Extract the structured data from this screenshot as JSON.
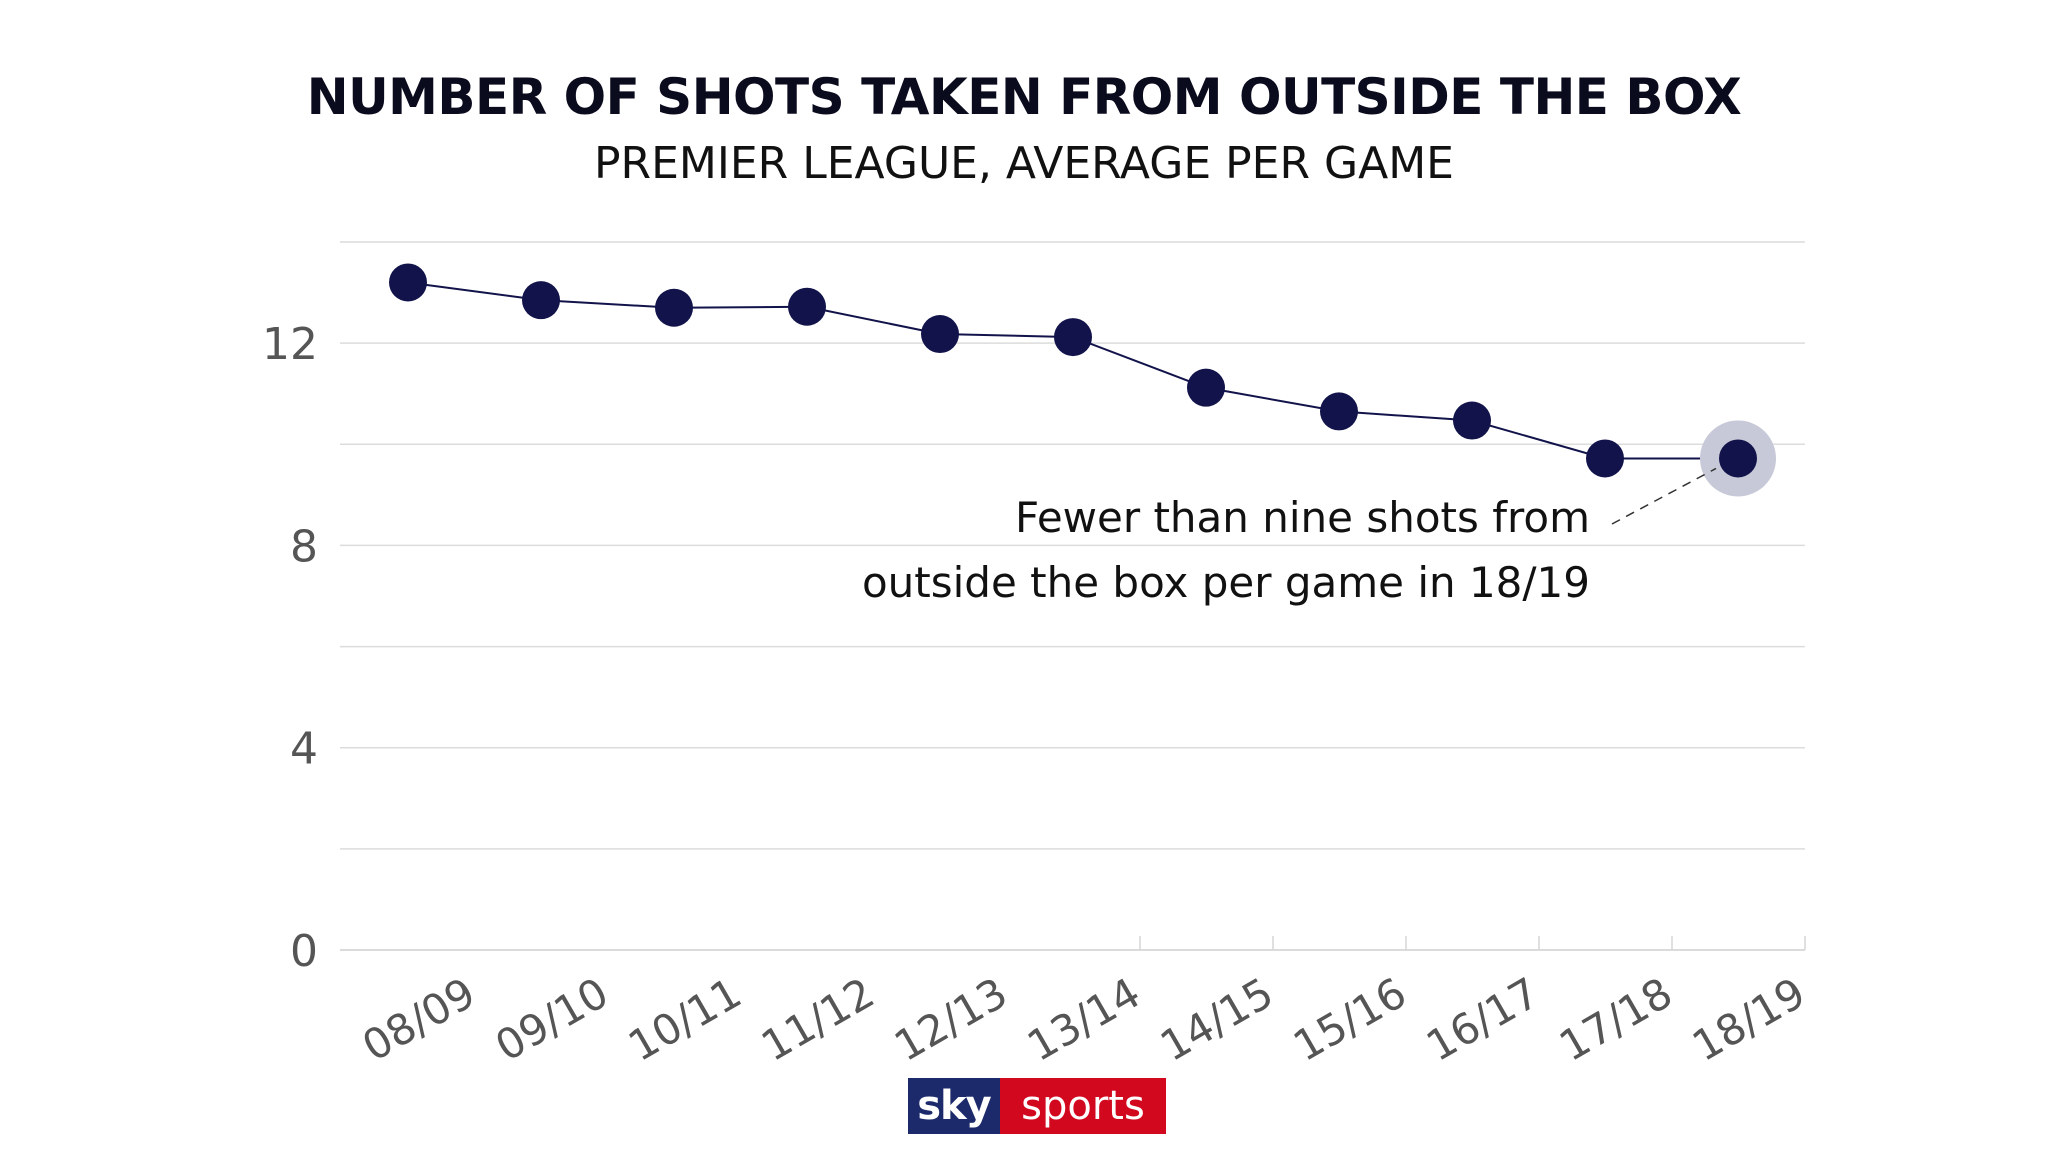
{
  "chart_data": {
    "type": "line",
    "title": "NUMBER OF SHOTS TAKEN FROM OUTSIDE THE BOX",
    "subtitle": "PREMIER LEAGUE, AVERAGE PER GAME",
    "categories": [
      "08/09",
      "09/10",
      "10/11",
      "11/12",
      "12/13",
      "13/14",
      "14/15",
      "15/16",
      "16/17",
      "17/18",
      "18/19"
    ],
    "series": [
      {
        "values": [
          13.2,
          12.85,
          12.7,
          12.72,
          12.18,
          12.12,
          11.12,
          10.65,
          10.47,
          9.72,
          9.72
        ]
      }
    ],
    "yticks": [
      0,
      4,
      8,
      12
    ],
    "ylim": [
      0,
      14
    ],
    "grid": true,
    "annotation": {
      "line1": "Fewer than nine shots from",
      "line2": "outside the box per game in 18/19",
      "target": "18/19"
    },
    "colors": {
      "line": "#12134a",
      "marker": "#12134a",
      "highlight": "#c8c9d8",
      "grid": "#dcdcdc",
      "tick_text": "#555555"
    }
  },
  "logo": {
    "sky": "sky",
    "sports": "sports"
  }
}
